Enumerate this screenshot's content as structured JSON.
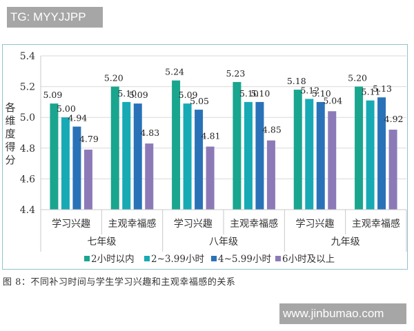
{
  "watermarks": {
    "top": "TG: MYYJJPP",
    "bottom": "www.jinbumao.com"
  },
  "caption": "图 8：不同补习时间与学生学习兴趣和主观幸福感的关系",
  "colors": {
    "s1": "#1aa58f",
    "s2": "#17aab5",
    "s3": "#2a72b8",
    "s4": "#8c7ab8",
    "grid": "#d9d9d9",
    "frame": "#8fc3cc"
  },
  "chart_data": {
    "type": "bar",
    "title": "",
    "ylabel": "各维度得分",
    "xlabel": "",
    "ylim": [
      4.4,
      5.4
    ],
    "yticks": [
      "4.4",
      "4.6",
      "4.8",
      "5.0",
      "5.2",
      "5.4"
    ],
    "grid": true,
    "legend_position": "bottom",
    "groups": [
      "七年级",
      "八年级",
      "九年级"
    ],
    "categories": [
      "学习兴趣",
      "主观幸福感",
      "学习兴趣",
      "主观幸福感",
      "学习兴趣",
      "主观幸福感"
    ],
    "series": [
      {
        "name": "2小时以内",
        "values": [
          5.09,
          5.2,
          5.24,
          5.23,
          5.18,
          5.2
        ]
      },
      {
        "name": "2~3.99小时",
        "values": [
          5.0,
          5.1,
          5.09,
          5.1,
          5.12,
          5.11
        ]
      },
      {
        "name": "4~5.99小时",
        "values": [
          4.94,
          5.09,
          5.05,
          5.1,
          5.1,
          5.13
        ]
      },
      {
        "name": "6小时及以上",
        "values": [
          4.79,
          4.83,
          4.81,
          4.85,
          5.04,
          4.92
        ]
      }
    ],
    "value_labels": [
      [
        "5.09",
        "5.20",
        "5.24",
        "5.23",
        "5.18",
        "5.20"
      ],
      [
        "5.00",
        "5.10",
        "5.09",
        "5.10",
        "5.12",
        "5.11"
      ],
      [
        "4.94",
        "5.09",
        "5.05",
        "5.10",
        "5.10",
        "5.13"
      ],
      [
        "4.79",
        "4.83",
        "4.81",
        "4.85",
        "5.04",
        "4.92"
      ]
    ]
  }
}
